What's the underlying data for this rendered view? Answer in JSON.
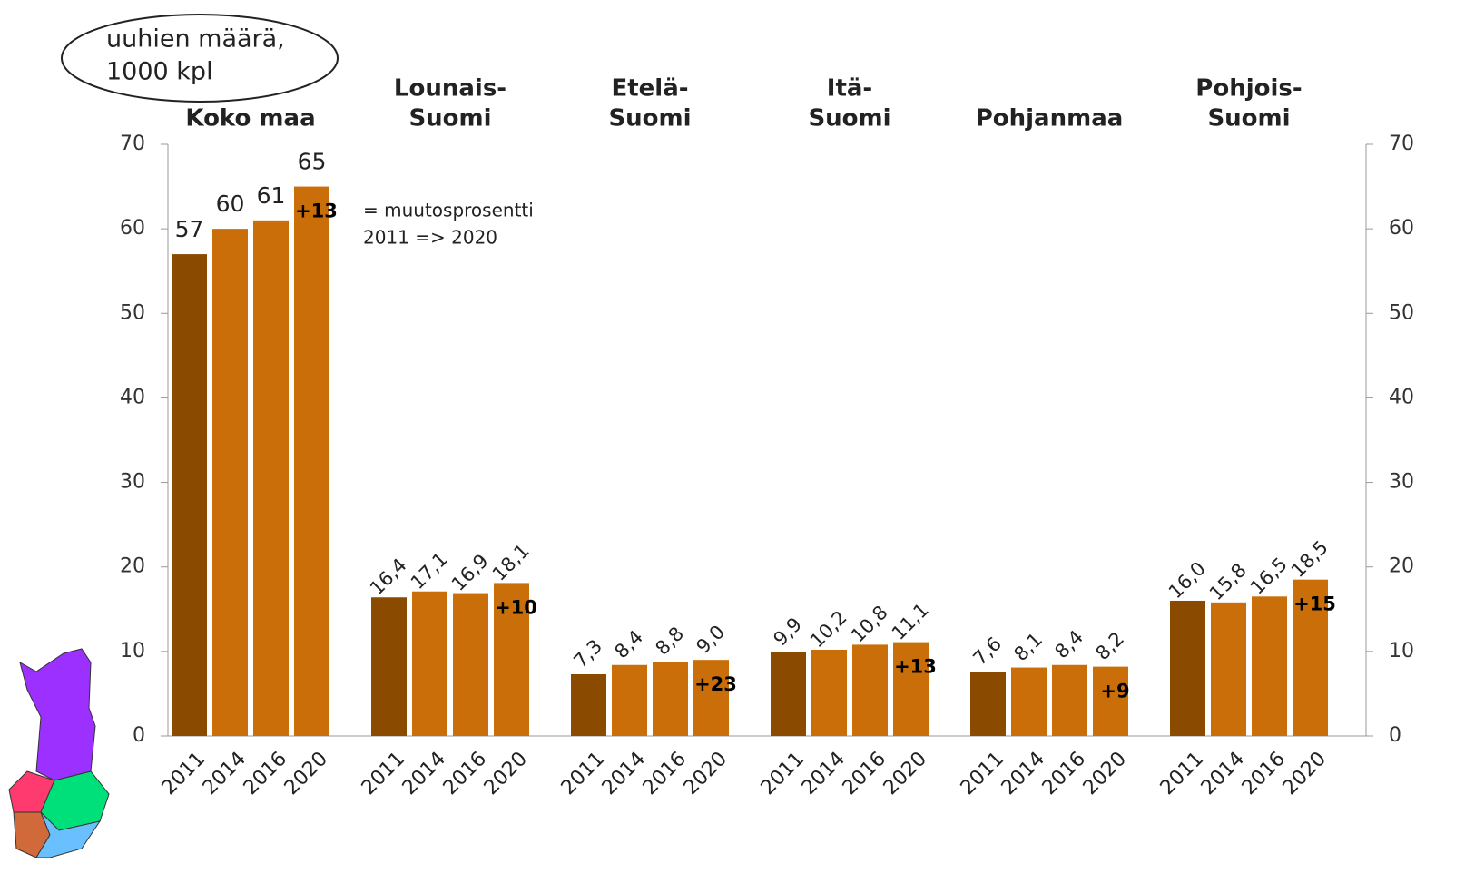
{
  "chart_data": {
    "type": "bar",
    "y_label": [
      "uuhien määrä,",
      "1000 kpl"
    ],
    "note": [
      "= muutosprosentti",
      "2011 => 2020"
    ],
    "categories": [
      "2011",
      "2014",
      "2016",
      "2020"
    ],
    "colors": [
      "#8a4a00",
      "#c96e08",
      "#c96e08",
      "#c96e08"
    ],
    "ylim": [
      0,
      70
    ],
    "yticks": [
      0,
      10,
      20,
      30,
      40,
      50,
      60,
      70
    ],
    "groups": [
      {
        "name": [
          "Koko maa"
        ],
        "values": [
          57,
          60,
          61,
          65
        ],
        "change": {
          "value": 13,
          "label": "+13"
        }
      },
      {
        "name": [
          "Lounais-",
          "Suomi"
        ],
        "values": [
          16.4,
          17.1,
          16.9,
          18.1
        ],
        "value_labels": [
          "16,4",
          "17,1",
          "16,9",
          "18,1"
        ],
        "change": {
          "value": 10,
          "label": "+10"
        }
      },
      {
        "name": [
          "Etelä-",
          "Suomi"
        ],
        "values": [
          7.3,
          8.4,
          8.8,
          9.0
        ],
        "value_labels": [
          "7,3",
          "8,4",
          "8,8",
          "9,0"
        ],
        "change": {
          "value": 23,
          "label": "+23"
        }
      },
      {
        "name": [
          "Itä-",
          "Suomi"
        ],
        "values": [
          9.9,
          10.2,
          10.8,
          11.1
        ],
        "value_labels": [
          "9,9",
          "10,2",
          "10,8",
          "11,1"
        ],
        "change": {
          "value": 13,
          "label": "+13"
        }
      },
      {
        "name": [
          "Pohjanmaa"
        ],
        "values": [
          7.6,
          8.1,
          8.4,
          8.2
        ],
        "value_labels": [
          "7,6",
          "8,1",
          "8,4",
          "8,2"
        ],
        "change": {
          "value": 9,
          "label": "+9"
        }
      },
      {
        "name": [
          "Pohjois-",
          "Suomi"
        ],
        "values": [
          16.0,
          15.8,
          16.5,
          18.5
        ],
        "value_labels": [
          "16,0",
          "15,8",
          "16,5",
          "18,5"
        ],
        "change": {
          "value": 15,
          "label": "+15"
        }
      }
    ]
  }
}
